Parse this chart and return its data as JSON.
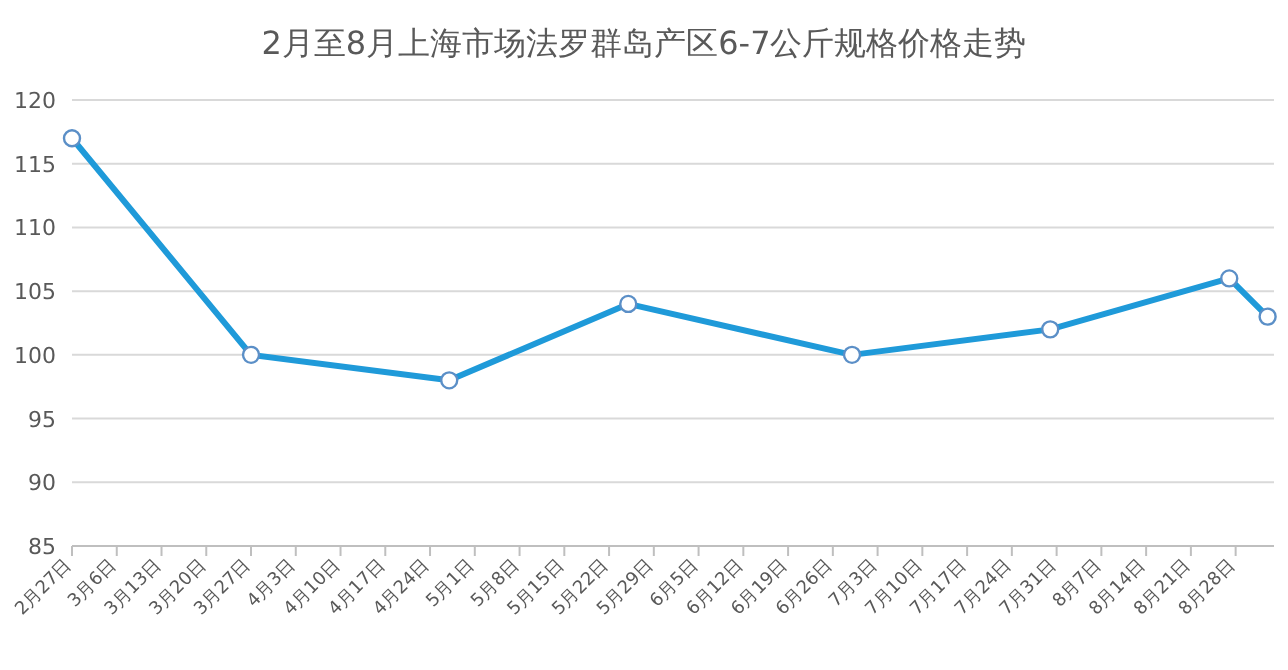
{
  "chart_data": {
    "type": "line",
    "title": "2月至8月上海市场法罗群岛产区6-7公斤规格价格走势",
    "x": [
      "--02-27",
      "--03-27",
      "--04-27",
      "--05-25",
      "--06-29",
      "--07-30",
      "--08-27",
      "--09-02"
    ],
    "series": [
      {
        "color": "#1f9ad9",
        "values": [
          117,
          100,
          98,
          104,
          100,
          102,
          106,
          103
        ]
      }
    ],
    "xlim": [
      "--02-27",
      "--09-03"
    ],
    "xticks": [
      {
        "value": "--02-27",
        "label": "2月27日"
      },
      {
        "value": "--03-06",
        "label": "3月6日"
      },
      {
        "value": "--03-13",
        "label": "3月13日"
      },
      {
        "value": "--03-20",
        "label": "3月20日"
      },
      {
        "value": "--03-27",
        "label": "3月27日"
      },
      {
        "value": "--04-03",
        "label": "4月3日"
      },
      {
        "value": "--04-10",
        "label": "4月10日"
      },
      {
        "value": "--04-17",
        "label": "4月17日"
      },
      {
        "value": "--04-24",
        "label": "4月24日"
      },
      {
        "value": "--05-01",
        "label": "5月1日"
      },
      {
        "value": "--05-08",
        "label": "5月8日"
      },
      {
        "value": "--05-15",
        "label": "5月15日"
      },
      {
        "value": "--05-22",
        "label": "5月22日"
      },
      {
        "value": "--05-29",
        "label": "5月29日"
      },
      {
        "value": "--06-05",
        "label": "6月5日"
      },
      {
        "value": "--06-12",
        "label": "6月12日"
      },
      {
        "value": "--06-19",
        "label": "6月19日"
      },
      {
        "value": "--06-26",
        "label": "6月26日"
      },
      {
        "value": "--07-03",
        "label": "7月3日"
      },
      {
        "value": "--07-10",
        "label": "7月10日"
      },
      {
        "value": "--07-17",
        "label": "7月17日"
      },
      {
        "value": "--07-24",
        "label": "7月24日"
      },
      {
        "value": "--07-31",
        "label": "7月31日"
      },
      {
        "value": "--08-07",
        "label": "8月7日"
      },
      {
        "value": "--08-14",
        "label": "8月14日"
      },
      {
        "value": "--08-21",
        "label": "8月21日"
      },
      {
        "value": "--08-28",
        "label": "8月28日"
      }
    ],
    "ylim": [
      85,
      120
    ],
    "yticks": [
      85,
      90,
      95,
      100,
      105,
      110,
      115,
      120
    ],
    "grid": "y",
    "marker": "circle",
    "line_style": "solid"
  }
}
